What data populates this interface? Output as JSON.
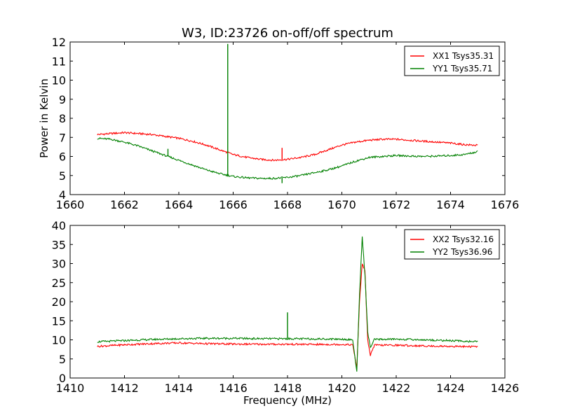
{
  "title": "W3, ID:23726 on-off/off spectrum",
  "chart_data": [
    {
      "type": "line",
      "title": "W3, ID:23726 on-off/off spectrum",
      "xlabel": "",
      "ylabel": "Power in Kelvin",
      "xlim": [
        1660,
        1676
      ],
      "ylim": [
        4,
        12
      ],
      "xticks": [
        "1660",
        "1662",
        "1664",
        "1666",
        "1668",
        "1670",
        "1672",
        "1674",
        "1676"
      ],
      "yticks": [
        "4",
        "5",
        "6",
        "7",
        "8",
        "9",
        "10",
        "11",
        "12"
      ],
      "legend_position": "top-right",
      "series": [
        {
          "name": "XX1 Tsys35.31",
          "color": "#ff0000",
          "x": [
            1661.0,
            1661.5,
            1662.0,
            1662.5,
            1663.0,
            1663.5,
            1664.0,
            1664.5,
            1665.0,
            1665.5,
            1666.0,
            1666.5,
            1667.0,
            1667.5,
            1668.0,
            1668.5,
            1669.0,
            1669.5,
            1670.0,
            1670.5,
            1671.0,
            1671.5,
            1672.0,
            1672.5,
            1673.0,
            1673.5,
            1674.0,
            1674.5,
            1675.0
          ],
          "y": [
            7.15,
            7.2,
            7.25,
            7.2,
            7.15,
            7.05,
            6.95,
            6.8,
            6.6,
            6.35,
            6.1,
            5.95,
            5.85,
            5.8,
            5.85,
            5.95,
            6.1,
            6.35,
            6.6,
            6.75,
            6.85,
            6.9,
            6.9,
            6.85,
            6.8,
            6.75,
            6.7,
            6.62,
            6.58
          ]
        },
        {
          "name": "YY1 Tsys35.71",
          "color": "#008000",
          "x": [
            1661.0,
            1661.5,
            1662.0,
            1662.5,
            1663.0,
            1663.5,
            1664.0,
            1664.5,
            1665.0,
            1665.5,
            1666.0,
            1666.5,
            1667.0,
            1667.5,
            1668.0,
            1668.5,
            1669.0,
            1669.5,
            1670.0,
            1670.5,
            1671.0,
            1671.5,
            1672.0,
            1672.5,
            1673.0,
            1673.5,
            1674.0,
            1674.5,
            1675.0
          ],
          "y": [
            6.95,
            6.9,
            6.75,
            6.55,
            6.3,
            6.05,
            5.8,
            5.55,
            5.3,
            5.1,
            4.95,
            4.88,
            4.85,
            4.85,
            4.9,
            5.0,
            5.15,
            5.3,
            5.5,
            5.75,
            5.95,
            6.0,
            6.05,
            6.02,
            6.0,
            6.02,
            6.05,
            6.1,
            6.25
          ]
        }
      ],
      "spikes": [
        {
          "series": "YY1 Tsys35.71",
          "x": 1665.8,
          "y": 11.9
        },
        {
          "series": "YY1 Tsys35.71",
          "x": 1663.6,
          "y": 6.4
        },
        {
          "series": "YY1 Tsys35.71",
          "x": 1667.8,
          "y": 4.6
        },
        {
          "series": "XX1 Tsys35.31",
          "x": 1667.8,
          "y": 6.45
        }
      ]
    },
    {
      "type": "line",
      "title": "",
      "xlabel": "Frequency (MHz)",
      "ylabel": "",
      "xlim": [
        1410,
        1426
      ],
      "ylim": [
        0,
        40
      ],
      "xticks": [
        "1410",
        "1412",
        "1414",
        "1416",
        "1418",
        "1420",
        "1422",
        "1424",
        "1426"
      ],
      "yticks": [
        "0",
        "5",
        "10",
        "15",
        "20",
        "25",
        "30",
        "35",
        "40"
      ],
      "legend_position": "top-right",
      "series": [
        {
          "name": "XX2 Tsys32.16",
          "color": "#ff0000",
          "x": [
            1411.0,
            1412.0,
            1413.0,
            1414.0,
            1415.0,
            1416.0,
            1417.0,
            1418.0,
            1419.0,
            1420.0,
            1420.4,
            1420.55,
            1420.65,
            1420.75,
            1420.85,
            1420.95,
            1421.05,
            1421.2,
            1422.0,
            1423.0,
            1424.0,
            1425.0
          ],
          "y": [
            8.3,
            8.7,
            9.0,
            9.2,
            9.0,
            8.9,
            8.85,
            8.85,
            8.8,
            8.8,
            8.7,
            2.5,
            20.0,
            30.0,
            28.0,
            10.0,
            6.0,
            8.6,
            8.6,
            8.4,
            8.3,
            8.2
          ]
        },
        {
          "name": "YY2 Tsys36.96",
          "color": "#008000",
          "x": [
            1411.0,
            1412.0,
            1413.0,
            1414.0,
            1415.0,
            1416.0,
            1417.0,
            1418.0,
            1419.0,
            1420.0,
            1420.4,
            1420.55,
            1420.65,
            1420.75,
            1420.85,
            1420.95,
            1421.05,
            1421.2,
            1422.0,
            1423.0,
            1424.0,
            1425.0
          ],
          "y": [
            9.5,
            9.8,
            10.1,
            10.3,
            10.4,
            10.4,
            10.3,
            10.3,
            10.25,
            10.2,
            10.0,
            1.5,
            22.0,
            37.0,
            27.0,
            12.0,
            8.0,
            10.1,
            10.2,
            10.0,
            9.8,
            9.5
          ]
        }
      ],
      "spikes": [
        {
          "series": "YY2 Tsys36.96",
          "x": 1418.0,
          "y": 17.2
        }
      ]
    }
  ]
}
